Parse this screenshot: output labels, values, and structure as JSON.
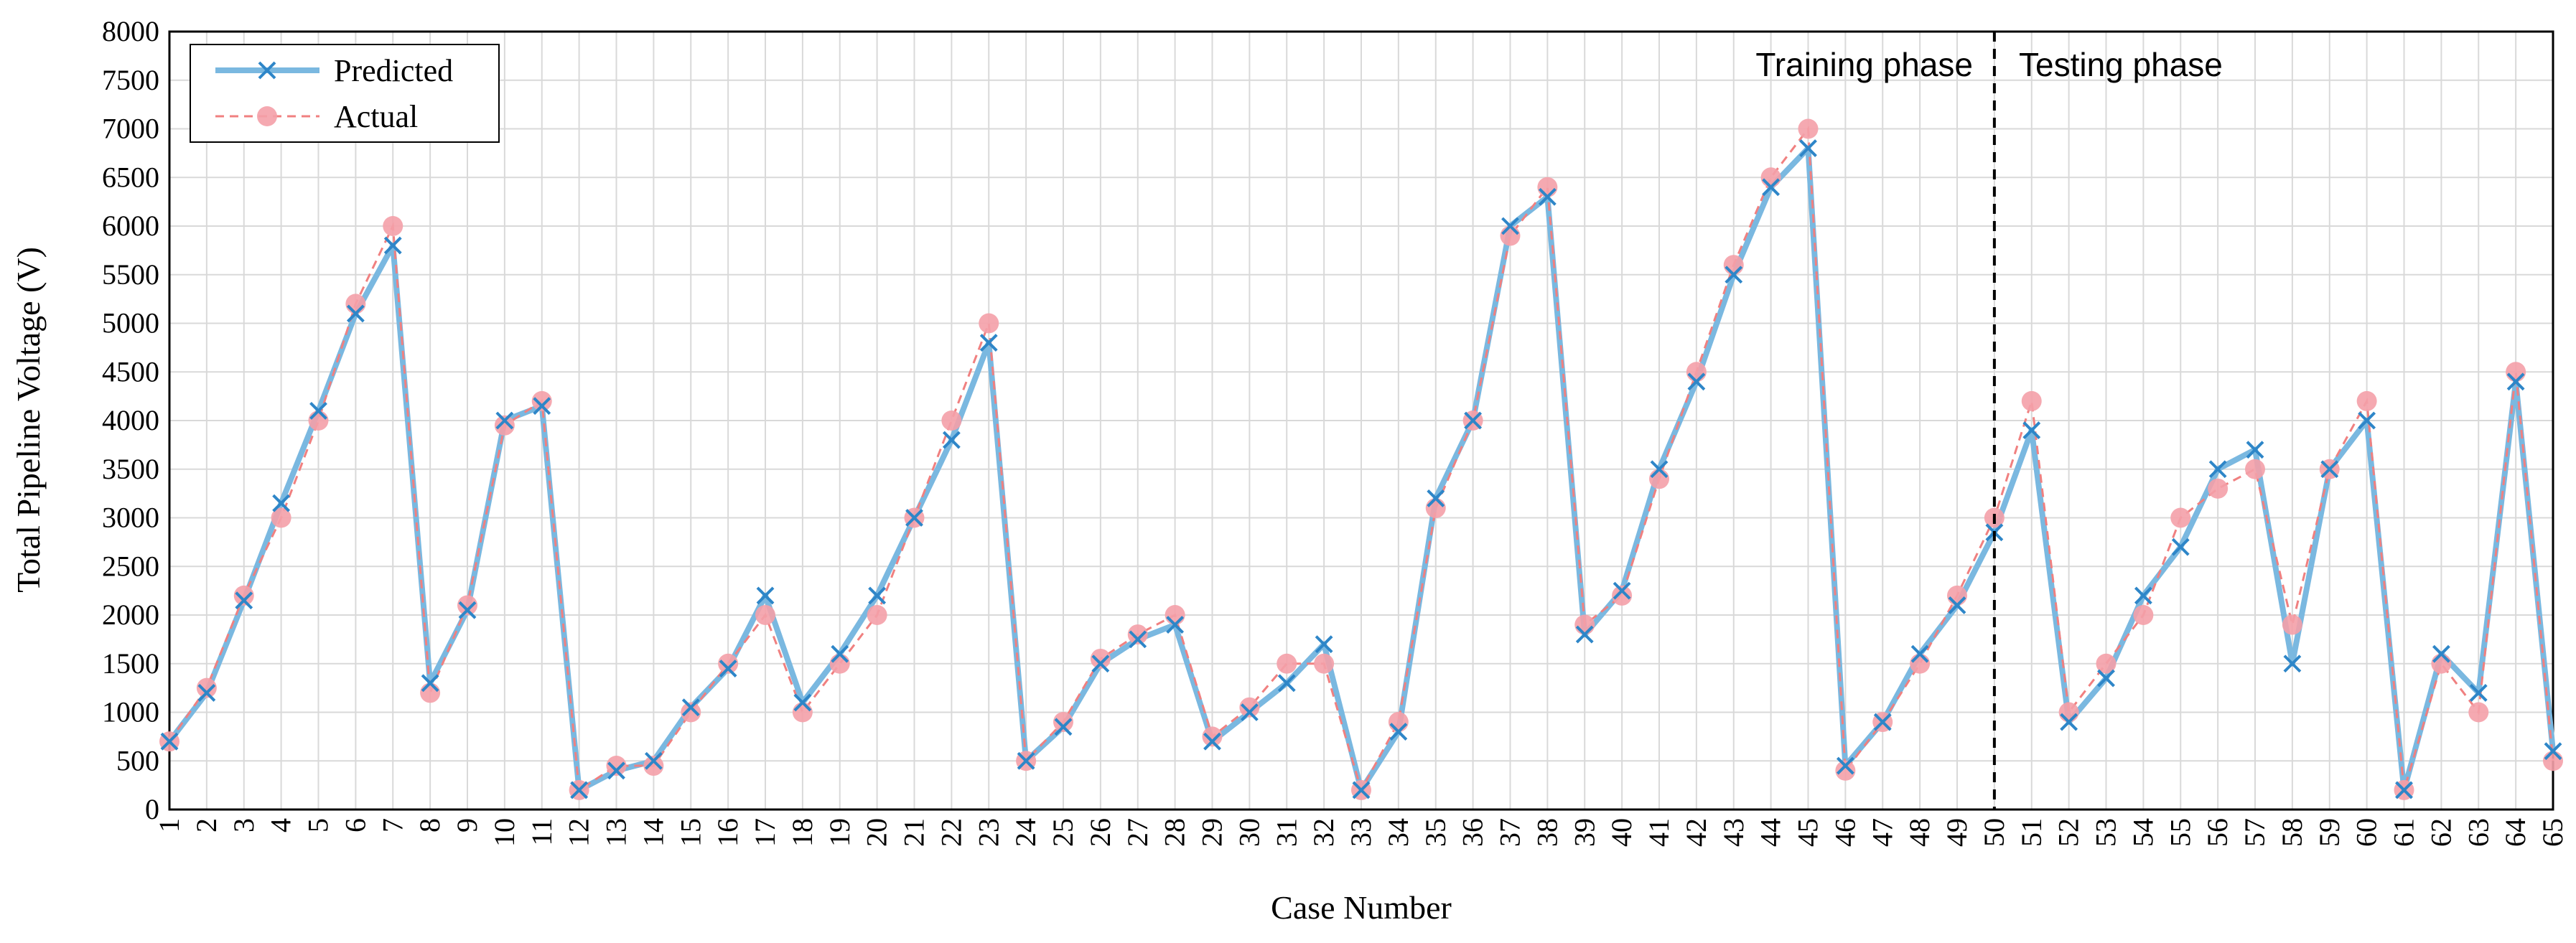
{
  "chart_data": {
    "type": "line",
    "xlabel": "Case Number",
    "ylabel": "Total Pipeline Voltage (V)",
    "ylim": [
      0,
      8000
    ],
    "yticks": [
      0,
      500,
      1000,
      1500,
      2000,
      2500,
      3000,
      3500,
      4000,
      4500,
      5000,
      5500,
      6000,
      6500,
      7000,
      7500,
      8000
    ],
    "x": [
      1,
      2,
      3,
      4,
      5,
      6,
      7,
      8,
      9,
      10,
      11,
      12,
      13,
      14,
      15,
      16,
      17,
      18,
      19,
      20,
      21,
      22,
      23,
      24,
      25,
      26,
      27,
      28,
      29,
      30,
      31,
      32,
      33,
      34,
      35,
      36,
      37,
      38,
      39,
      40,
      41,
      42,
      43,
      44,
      45,
      46,
      47,
      48,
      49,
      50,
      51,
      52,
      53,
      54,
      55,
      56,
      57,
      58,
      59,
      60,
      61,
      62,
      63,
      64,
      65
    ],
    "grid": true,
    "legend_position": "top-left",
    "series": [
      {
        "name": "Predicted",
        "color": "#7ab8e0",
        "marker": "x",
        "marker_color": "#2e86c8",
        "values": [
          700,
          1200,
          2150,
          3150,
          4100,
          5100,
          5800,
          1300,
          2050,
          4000,
          4150,
          200,
          400,
          500,
          1050,
          1450,
          2200,
          1100,
          1600,
          2200,
          3000,
          3800,
          4800,
          500,
          850,
          1500,
          1750,
          1900,
          700,
          1000,
          1300,
          1700,
          200,
          800,
          3200,
          4000,
          6000,
          6300,
          1800,
          2250,
          3500,
          4400,
          5500,
          6400,
          6800,
          450,
          900,
          1600,
          2100,
          2850,
          3900,
          900,
          1350,
          2200,
          2700,
          3500,
          3700,
          1500,
          3500,
          4000,
          200,
          1600,
          1200,
          4400,
          600
        ]
      },
      {
        "name": "Actual",
        "color": "#f08080",
        "marker": "circle",
        "marker_color": "#f4a0a8",
        "values": [
          700,
          1250,
          2200,
          3000,
          4000,
          5200,
          6000,
          1200,
          2100,
          3950,
          4200,
          200,
          450,
          450,
          1000,
          1500,
          2000,
          1000,
          1500,
          2000,
          3000,
          4000,
          5000,
          500,
          900,
          1550,
          1800,
          2000,
          750,
          1050,
          1500,
          1500,
          200,
          900,
          3100,
          4000,
          5900,
          6400,
          1900,
          2200,
          3400,
          4500,
          5600,
          6500,
          7000,
          400,
          900,
          1500,
          2200,
          3000,
          4200,
          1000,
          1500,
          2000,
          3000,
          3300,
          3500,
          1900,
          3500,
          4200,
          200,
          1500,
          1000,
          4500,
          500
        ]
      }
    ],
    "phases": {
      "divider_after_case": 50,
      "training_label": "Training phase",
      "testing_label": "Testing phase"
    }
  }
}
